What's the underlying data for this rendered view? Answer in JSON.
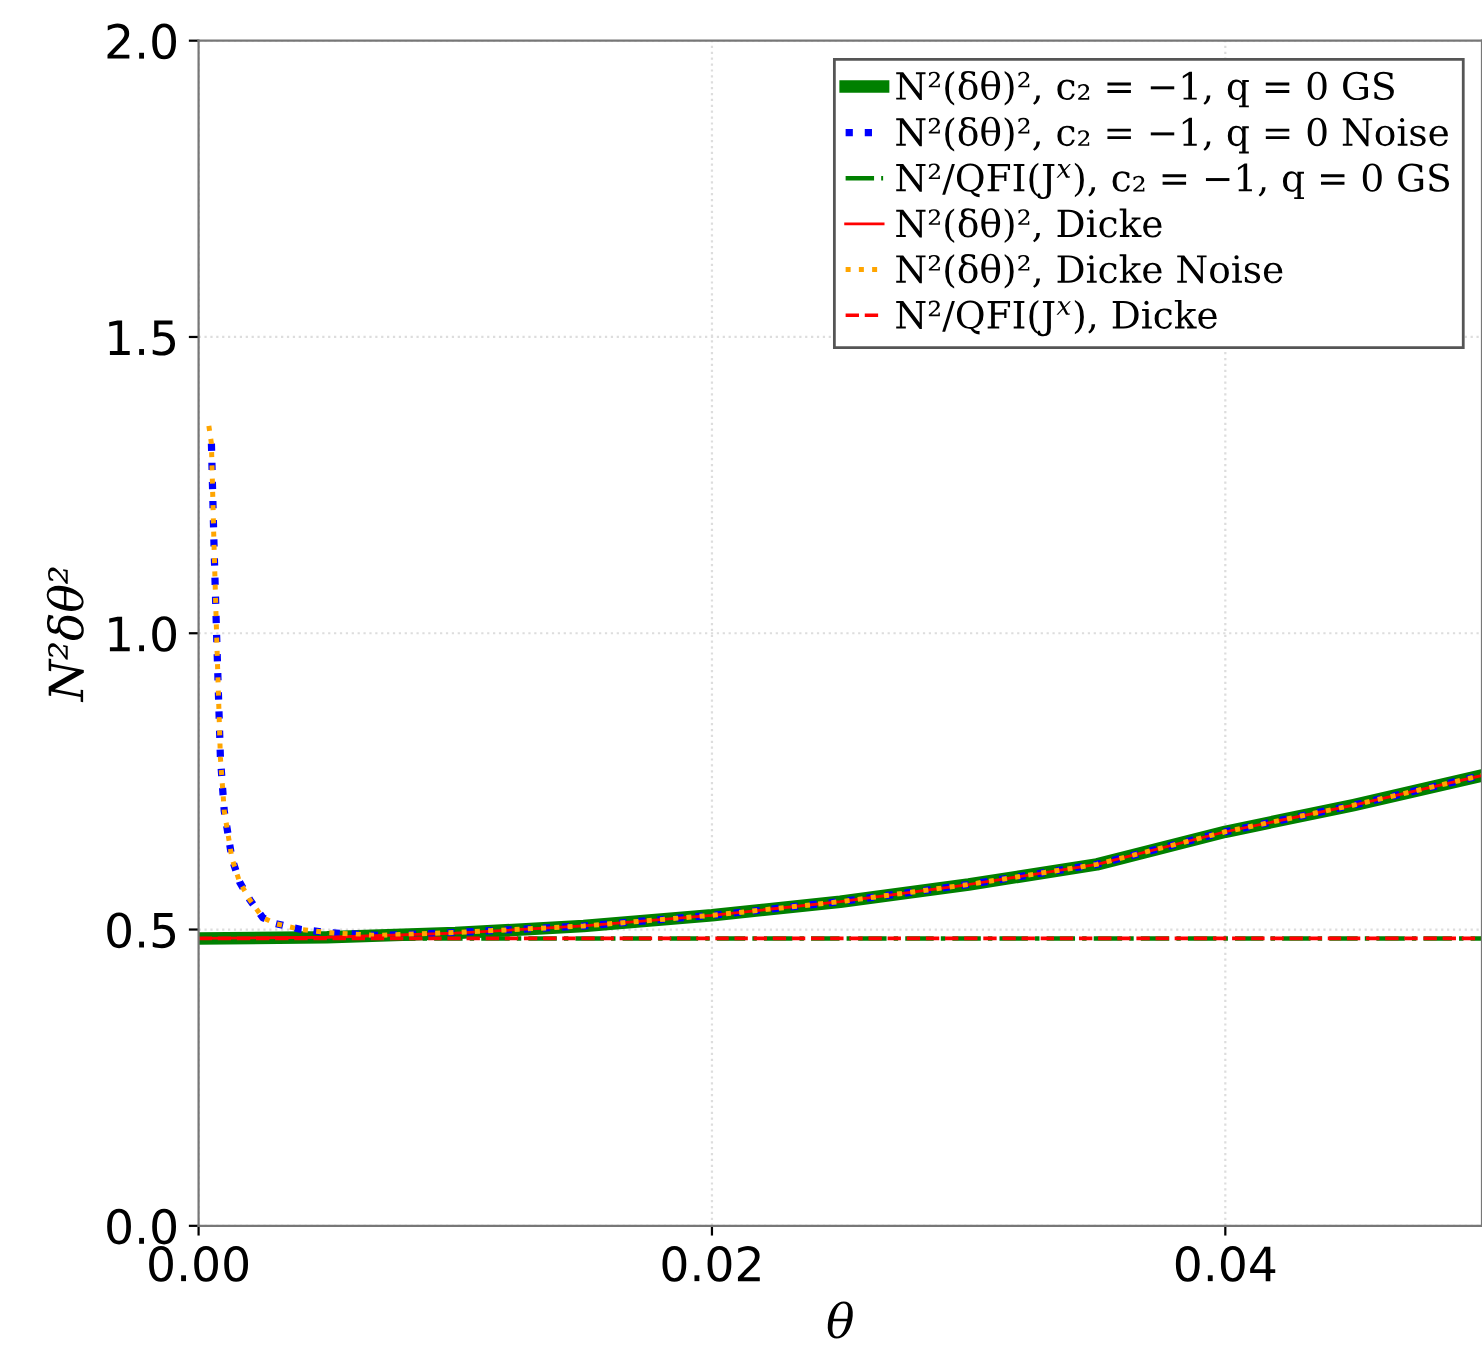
{
  "chart_data": {
    "type": "line",
    "xlabel": "θ",
    "ylabel": "N²δθ²",
    "xlim": [
      0,
      0.05
    ],
    "ylim": [
      0,
      2.0
    ],
    "xticks": [
      {
        "value": 0,
        "label": "0.00"
      },
      0.02,
      0.04
    ],
    "yticks": [
      {
        "value": 0,
        "label": "0.0"
      },
      0.5,
      {
        "value": 1.0,
        "label": "1.0"
      },
      1.5,
      {
        "value": 2.0,
        "label": "2.0"
      }
    ],
    "grid": true,
    "legend": "top right",
    "marker": "none",
    "x": [
      0,
      0.005,
      0.01,
      0.015,
      0.02,
      0.025,
      0.03,
      0.035,
      0.04,
      0.045,
      0.05
    ],
    "series": [
      {
        "name": "N²(δθ)², c₂ = −1, q = 0 GS",
        "color": "#008000",
        "line_style": "solid",
        "values": [
          0.485,
          0.487,
          0.494,
          0.506,
          0.524,
          0.547,
          0.576,
          0.61,
          0.665,
          0.71,
          0.76
        ]
      },
      {
        "name": "N²(δθ)², c₂ = −1, q = 0 Noise",
        "color": "#0000ff",
        "line_style": "dotted",
        "x": [
          0.0005,
          0.0006,
          0.0007,
          0.00085,
          0.001,
          0.0013,
          0.0016,
          0.002,
          0.0025,
          0.003,
          0.004,
          0.005,
          0.007,
          0.01,
          0.015,
          0.02,
          0.025,
          0.03,
          0.035,
          0.04,
          0.045,
          0.05
        ],
        "values": [
          1.32,
          1.15,
          1.0,
          0.79,
          0.7,
          0.62,
          0.58,
          0.55,
          0.52,
          0.51,
          0.5,
          0.495,
          0.49,
          0.495,
          0.506,
          0.524,
          0.547,
          0.576,
          0.61,
          0.665,
          0.71,
          0.76
        ]
      },
      {
        "name": "N²/QFI(J$^{x}$), c₂ = −1, q = 0 GS",
        "color": "#008000",
        "line_style": "dashdot",
        "values": [
          0.485,
          0.485,
          0.485,
          0.485,
          0.485,
          0.485,
          0.485,
          0.485,
          0.485,
          0.485,
          0.485
        ]
      },
      {
        "name": "N²(δθ)², Dicke",
        "color": "#ff0000",
        "line_style": "solid",
        "values": [
          0.485,
          0.487,
          0.494,
          0.506,
          0.524,
          0.547,
          0.576,
          0.61,
          0.665,
          0.71,
          0.76
        ]
      },
      {
        "name": "N²(δθ)², Dicke Noise",
        "color": "#ffa500",
        "line_style": "dotted",
        "x": [
          0.0004,
          0.0005,
          0.0006,
          0.0007,
          0.00085,
          0.001,
          0.0013,
          0.0016,
          0.002,
          0.0025,
          0.003,
          0.004,
          0.005,
          0.007,
          0.01,
          0.015,
          0.02,
          0.025,
          0.03,
          0.035,
          0.04,
          0.045,
          0.05
        ],
        "values": [
          1.35,
          1.32,
          1.15,
          1.0,
          0.79,
          0.7,
          0.62,
          0.58,
          0.55,
          0.52,
          0.51,
          0.5,
          0.495,
          0.49,
          0.495,
          0.506,
          0.524,
          0.547,
          0.576,
          0.61,
          0.665,
          0.71,
          0.76
        ]
      },
      {
        "name": "N²/QFI(J$^{x}$), Dicke",
        "color": "#ff0000",
        "line_style": "dashed",
        "values": [
          0.485,
          0.485,
          0.485,
          0.485,
          0.485,
          0.485,
          0.485,
          0.485,
          0.485,
          0.485,
          0.485
        ]
      }
    ]
  }
}
